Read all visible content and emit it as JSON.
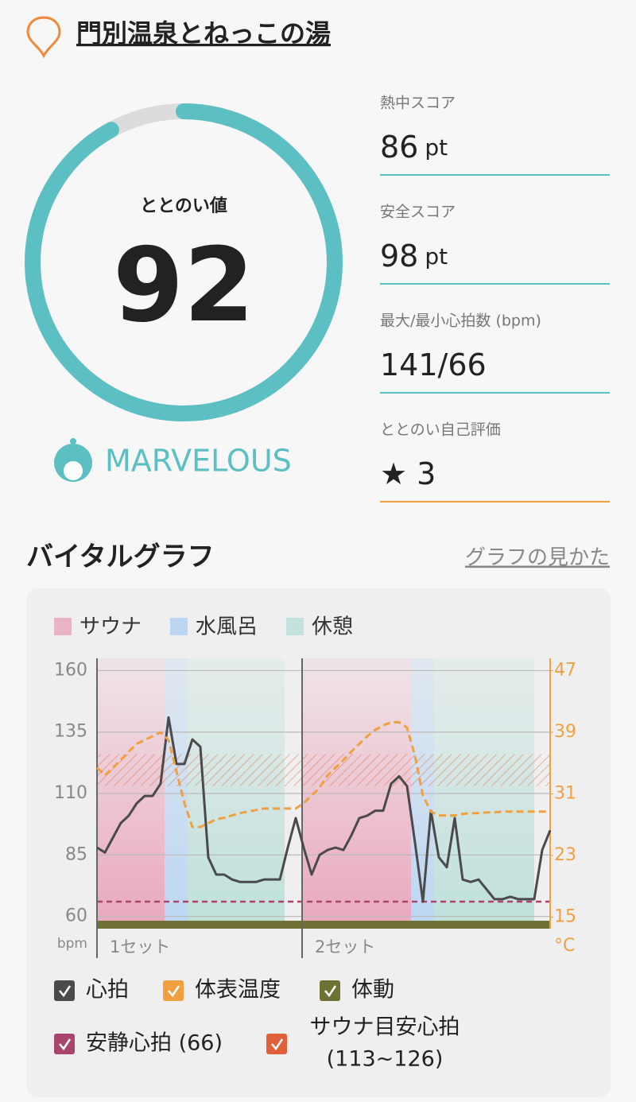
{
  "header": {
    "title": "門別温泉とねっこの湯"
  },
  "score": {
    "label": "ととのい値",
    "value": 92,
    "range": [
      0,
      100
    ],
    "rating": "MARVELOUS"
  },
  "stats": [
    {
      "label": "熱中スコア",
      "value": 86,
      "unit": "pt"
    },
    {
      "label": "安全スコア",
      "value": 98,
      "unit": "pt"
    },
    {
      "label": "最大/最小心拍数 (bpm)",
      "value": "141/66"
    },
    {
      "label": "ととのい自己評価",
      "value": 3
    }
  ],
  "section": {
    "title": "バイタルグラフ",
    "link": "グラフの見かた"
  },
  "chart_data": {
    "type": "line",
    "phases": [
      {
        "name": "サウナ",
        "color": "#eab3c6"
      },
      {
        "name": "水風呂",
        "color": "#bcd6f2"
      },
      {
        "name": "休憩",
        "color": "#c3e2dd"
      }
    ],
    "phase_spans": [
      {
        "phase": 0,
        "range": [
          0,
          8.5
        ]
      },
      {
        "phase": 1,
        "range": [
          8.5,
          11.4
        ]
      },
      {
        "phase": 2,
        "range": [
          11.4,
          23.6
        ]
      },
      {
        "phase": 0,
        "range": [
          25.8,
          39.5
        ]
      },
      {
        "phase": 1,
        "range": [
          39.5,
          42.4
        ]
      },
      {
        "phase": 2,
        "range": [
          42.4,
          55
        ]
      }
    ],
    "sets": [
      {
        "label": "1セット",
        "start": 0
      },
      {
        "label": "2セット",
        "start": 25.8
      }
    ],
    "x": [
      0,
      1,
      2,
      3,
      4,
      5,
      6,
      7,
      8,
      9,
      10,
      11,
      12,
      13,
      14,
      15,
      16,
      17,
      18,
      19,
      20,
      21,
      22,
      23,
      24,
      25,
      26,
      27,
      28,
      29,
      30,
      31,
      32,
      33,
      34,
      35,
      36,
      37,
      38,
      39,
      40,
      41,
      42,
      43,
      44,
      45,
      46,
      47,
      48,
      49,
      50,
      51,
      52,
      53,
      54,
      55,
      56,
      57
    ],
    "xlim": [
      0,
      57
    ],
    "ylim": [
      55,
      165
    ],
    "yticks": [
      160,
      135,
      110,
      85,
      60
    ],
    "y_label": "bpm",
    "y2lim": [
      13.5,
      48.6
    ],
    "y2ticks": [
      47,
      39,
      31,
      23,
      15
    ],
    "y2_label": "°C",
    "series": [
      {
        "name": "心拍",
        "color": "#4a4a4a",
        "values": [
          88,
          86,
          92,
          98,
          101,
          106,
          109,
          109,
          114,
          141,
          122,
          122,
          132,
          129,
          84,
          77,
          77,
          75,
          74,
          74,
          74,
          75,
          75,
          75,
          88,
          100,
          88,
          77,
          85,
          87,
          88,
          87,
          93,
          100,
          101,
          103,
          103,
          114,
          117,
          113,
          90,
          66,
          103,
          84,
          80,
          100,
          75,
          74,
          75,
          71,
          67,
          67,
          68,
          67,
          67,
          67,
          87,
          95
        ]
      },
      {
        "name": "体表温度",
        "color": "#f0a040",
        "axis": "y2",
        "values": [
          34.4,
          33.4,
          34.4,
          35.4,
          36.5,
          37.5,
          38.0,
          38.5,
          39.0,
          38.0,
          33.9,
          29.8,
          26.7,
          26.7,
          27.2,
          27.7,
          27.9,
          28.2,
          28.5,
          28.7,
          28.9,
          29.1,
          29.1,
          29.1,
          29.1,
          29.1,
          29.8,
          30.8,
          31.8,
          33.4,
          34.4,
          35.4,
          36.5,
          37.5,
          38.5,
          39.3,
          39.9,
          40.3,
          40.3,
          39.6,
          35.9,
          30.8,
          28.7,
          28.2,
          28.2,
          28.2,
          28.4,
          28.5,
          28.5,
          28.6,
          28.6,
          28.7,
          28.7,
          28.7,
          28.7,
          28.7,
          28.7,
          28.7
        ]
      }
    ],
    "movement": {
      "name": "体動",
      "color": "#6f7034"
    },
    "resting": {
      "name": "安静心拍 (66)",
      "value": 66,
      "color": "#a8456e"
    },
    "target": {
      "name": "サウナ目安心拍",
      "sublabel": "(113~126)",
      "range": [
        113,
        126
      ],
      "color": "#e0603a"
    }
  }
}
